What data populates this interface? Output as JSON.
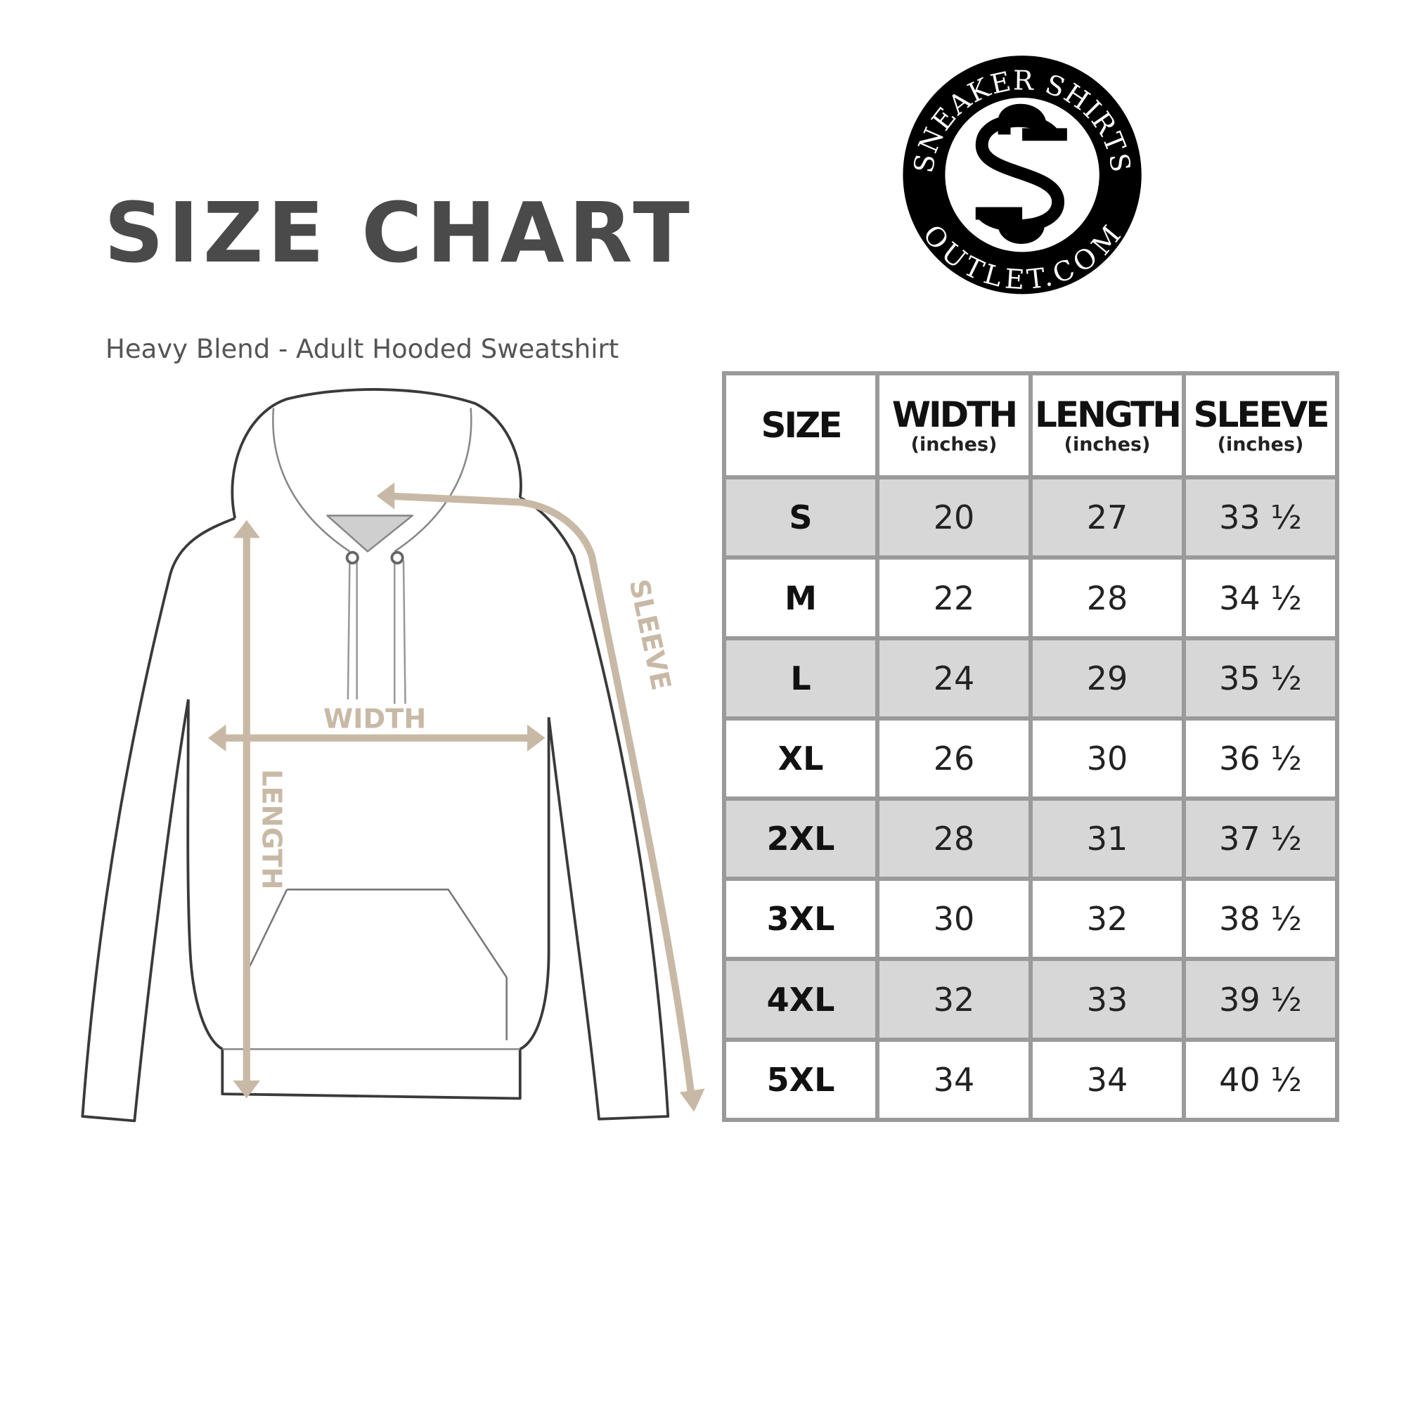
{
  "header": {
    "title": "SIZE CHART",
    "subtitle": "Heavy Blend - Adult Hooded Sweatshirt"
  },
  "logo": {
    "top_text": "SNEAKER SHIRTS",
    "bottom_text": "OUTLET.COM",
    "monogram": "SS"
  },
  "diagram": {
    "labels": {
      "width": "WIDTH",
      "length": "LENGTH",
      "sleeve": "SLEEVE"
    },
    "arrow_color": "#c8b9a6"
  },
  "table": {
    "columns": [
      {
        "label": "SIZE",
        "unit": ""
      },
      {
        "label": "WIDTH",
        "unit": "(inches)"
      },
      {
        "label": "LENGTH",
        "unit": "(inches)"
      },
      {
        "label": "SLEEVE",
        "unit": "(inches)"
      }
    ],
    "rows": [
      [
        "S",
        "20",
        "27",
        "33 ½"
      ],
      [
        "M",
        "22",
        "28",
        "34 ½"
      ],
      [
        "L",
        "24",
        "29",
        "35 ½"
      ],
      [
        "XL",
        "26",
        "30",
        "36 ½"
      ],
      [
        "2XL",
        "28",
        "31",
        "37 ½"
      ],
      [
        "3XL",
        "30",
        "32",
        "38 ½"
      ],
      [
        "4XL",
        "32",
        "33",
        "39 ½"
      ],
      [
        "5XL",
        "34",
        "34",
        "40 ½"
      ]
    ]
  }
}
